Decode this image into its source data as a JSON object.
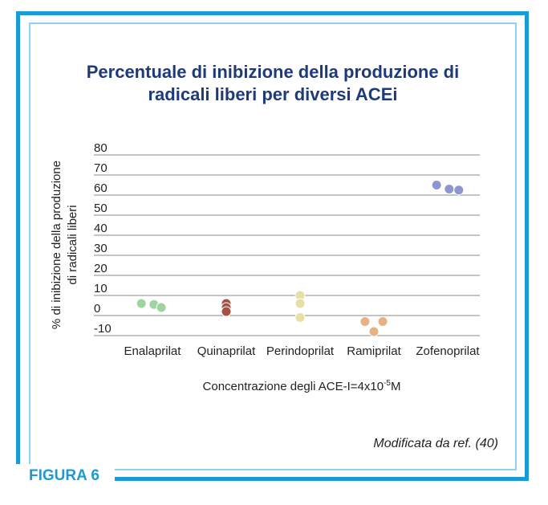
{
  "chart_data": {
    "type": "scatter",
    "title": "Percentuale di inibizione della produzione di radicali liberi per diversi ACEi",
    "title_lines": [
      "Percentuale di inibizione della produzione di",
      "radicali liberi per diversi ACEi"
    ],
    "ylabel_lines": [
      "% di inibizione della produzione",
      "di radicali liberi"
    ],
    "xlabel": "Concentrazione degli ACE-I=4x10",
    "xlabel_exp": "-5",
    "xlabel_unit": "M",
    "categories": [
      "Enalaprilat",
      "Quinaprilat",
      "Perindoprilat",
      "Ramiprilat",
      "Zofenoprilat"
    ],
    "ylim": [
      -10,
      80
    ],
    "yticks": [
      80,
      70,
      60,
      50,
      40,
      30,
      20,
      10,
      0,
      -10
    ],
    "grid": true,
    "series": [
      {
        "category": "Enalaprilat",
        "color": "#9fd3a3",
        "points": [
          [
            -0.15,
            6
          ],
          [
            0.02,
            5.5
          ],
          [
            0.12,
            4
          ]
        ]
      },
      {
        "category": "Quinaprilat",
        "color": "#a35145",
        "points": [
          [
            0,
            6
          ],
          [
            0,
            4
          ],
          [
            0,
            2
          ]
        ]
      },
      {
        "category": "Perindoprilat",
        "color": "#e8e0a2",
        "points": [
          [
            0,
            10
          ],
          [
            0,
            6
          ],
          [
            0,
            -1
          ]
        ]
      },
      {
        "category": "Ramiprilat",
        "color": "#e6b283",
        "points": [
          [
            -0.12,
            -3
          ],
          [
            0.12,
            -3
          ],
          [
            0,
            -8
          ]
        ]
      },
      {
        "category": "Zofenoprilat",
        "color": "#8e96cf",
        "points": [
          [
            -0.15,
            65
          ],
          [
            0.02,
            63
          ],
          [
            0.15,
            62.5
          ]
        ]
      }
    ]
  },
  "note": "Modificata da ref. (40)",
  "figure_label": "FIGURA 6"
}
